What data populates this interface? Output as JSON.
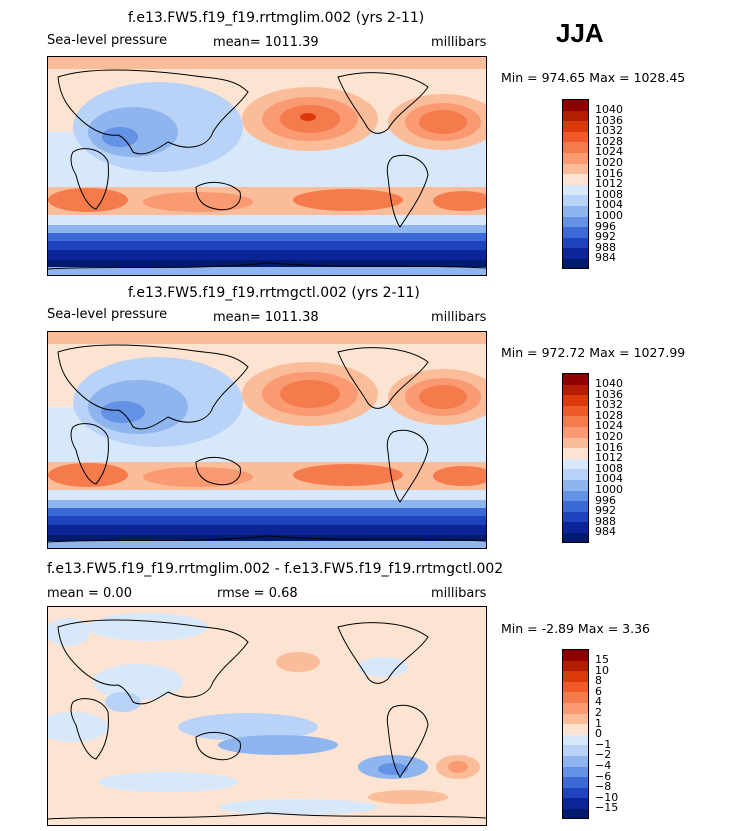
{
  "season": "JJA",
  "panels": [
    {
      "title": "f.e13.FW5.f19_f19.rrtmglim.002 (yrs 2-11)",
      "left_label": "Sea-level pressure",
      "mean_label": "mean= 1011.39",
      "units": "millibars",
      "minmax": "Min = 974.65 Max = 1028.45",
      "colorbar": {
        "labels": [
          "1040",
          "1036",
          "1032",
          "1028",
          "1024",
          "1020",
          "1016",
          "1012",
          "1008",
          "1004",
          "1000",
          "996",
          "992",
          "988",
          "984"
        ],
        "colors": [
          "#8c0000",
          "#b41e00",
          "#dc3a0a",
          "#f05a28",
          "#f57a4c",
          "#f99a72",
          "#fbbc9a",
          "#fde4d2",
          "#d8e8fb",
          "#b8d3f7",
          "#8fb5ef",
          "#6492e4",
          "#3b6ad6",
          "#1d44bd",
          "#0b2599",
          "#001a6e"
        ]
      }
    },
    {
      "title": "f.e13.FW5.f19_f19.rrtmgctl.002 (yrs 2-11)",
      "left_label": "Sea-level pressure",
      "mean_label": "mean= 1011.38",
      "units": "millibars",
      "minmax": "Min = 972.72 Max = 1027.99",
      "colorbar": {
        "labels": [
          "1040",
          "1036",
          "1032",
          "1028",
          "1024",
          "1020",
          "1016",
          "1012",
          "1008",
          "1004",
          "1000",
          "996",
          "992",
          "988",
          "984"
        ],
        "colors": [
          "#8c0000",
          "#b41e00",
          "#dc3a0a",
          "#f05a28",
          "#f57a4c",
          "#f99a72",
          "#fbbc9a",
          "#fde4d2",
          "#d8e8fb",
          "#b8d3f7",
          "#8fb5ef",
          "#6492e4",
          "#3b6ad6",
          "#1d44bd",
          "#0b2599",
          "#001a6e"
        ]
      }
    },
    {
      "title": "f.e13.FW5.f19_f19.rrtmglim.002 - f.e13.FW5.f19_f19.rrtmgctl.002",
      "left_label": "mean =    0.00",
      "mean_label": "rmse =    0.68",
      "units": "millibars",
      "minmax": "Min =  -2.89 Max =    3.36",
      "colorbar": {
        "labels": [
          "15",
          "10",
          "8",
          "6",
          "4",
          "2",
          "1",
          "0",
          "−1",
          "−2",
          "−4",
          "−6",
          "−8",
          "−10",
          "−15"
        ],
        "colors": [
          "#8c0000",
          "#b41e00",
          "#dc3a0a",
          "#f05a28",
          "#f57a4c",
          "#f99a72",
          "#fbbc9a",
          "#fde4d2",
          "#d8e8fb",
          "#b8d3f7",
          "#8fb5ef",
          "#6492e4",
          "#3b6ad6",
          "#1d44bd",
          "#0b2599",
          "#001a6e"
        ]
      }
    }
  ]
}
